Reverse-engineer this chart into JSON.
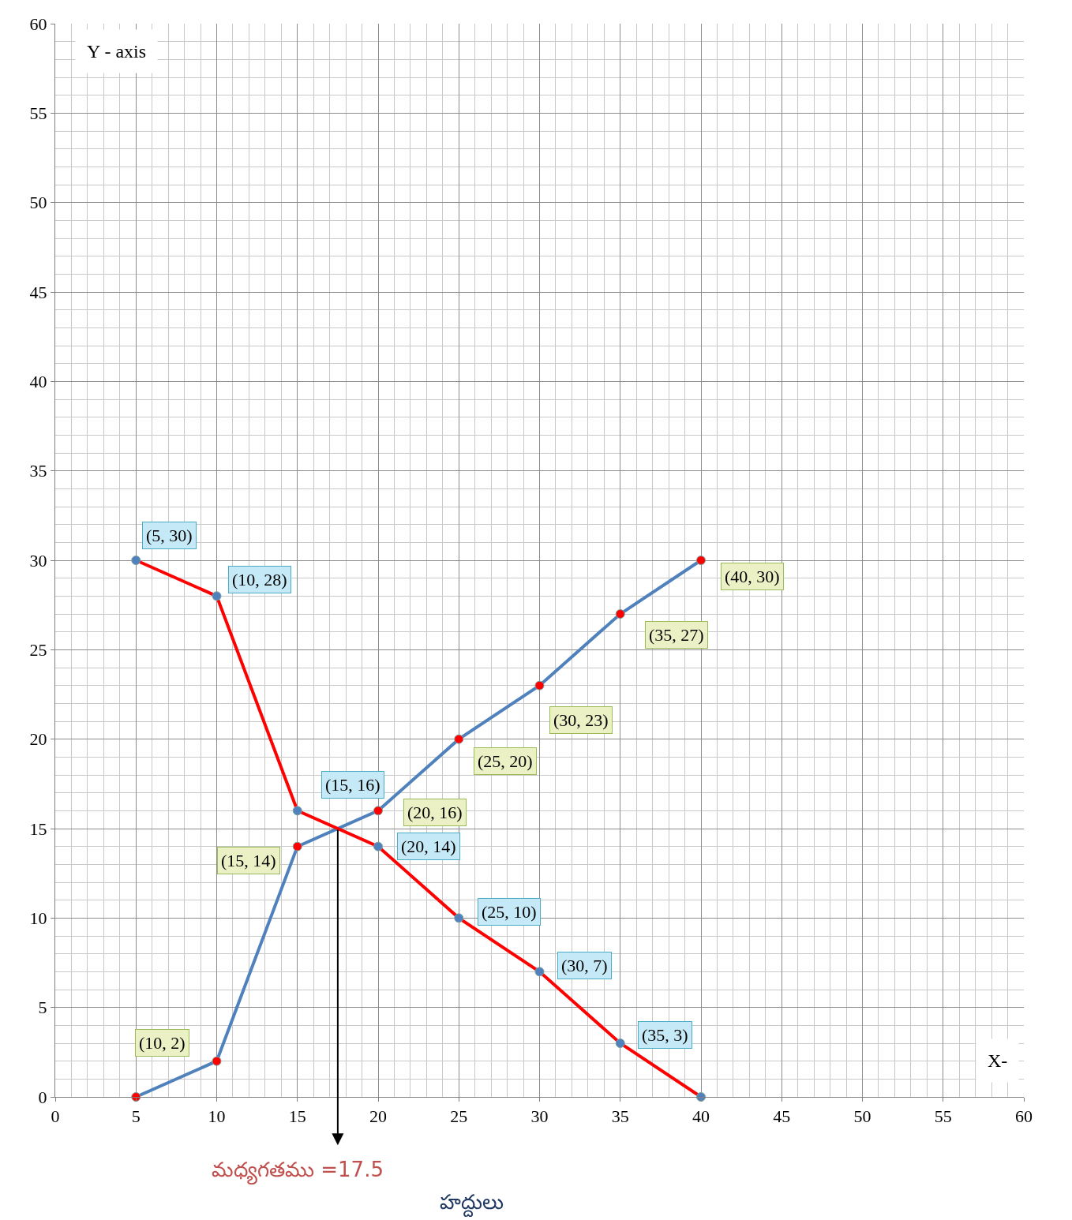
{
  "chart_data": {
    "type": "line",
    "x": [
      5,
      10,
      15,
      20,
      25,
      30,
      35,
      40
    ],
    "series": [
      {
        "color": "#4f81bd",
        "values": [
          0,
          2,
          14,
          16,
          20,
          23,
          27,
          30
        ],
        "value_labels": [
          null,
          "(10, 2)",
          "(15, 14)",
          "(20, 16)",
          "(25, 20)",
          "(30, 23)",
          "(35, 27)",
          "(40, 30)"
        ]
      },
      {
        "color": "#ff0000",
        "values": [
          30,
          28,
          16,
          14,
          10,
          7,
          3,
          0
        ],
        "value_labels": [
          "(5, 30)",
          "(10, 28)",
          "(15, 16)",
          "(20, 14)",
          "(25, 10)",
          "(30, 7)",
          "(35, 3)",
          null
        ]
      }
    ],
    "xlim": [
      0,
      60
    ],
    "xticks": [
      0,
      5,
      10,
      15,
      20,
      25,
      30,
      35,
      40,
      45,
      50,
      55,
      60
    ],
    "ylim": [
      0,
      60
    ],
    "yticks": [
      0,
      5,
      10,
      15,
      20,
      25,
      30,
      35,
      40,
      45,
      50,
      55,
      60
    ],
    "grid": true,
    "legend": false,
    "marker": "circle",
    "line_style": "solid",
    "annotations": [
      "Y - axis",
      "X-",
      {
        "text": "మధ్యగతము =17.5",
        "x": 17.5,
        "y": 15
      },
      "హద్దులు"
    ]
  }
}
